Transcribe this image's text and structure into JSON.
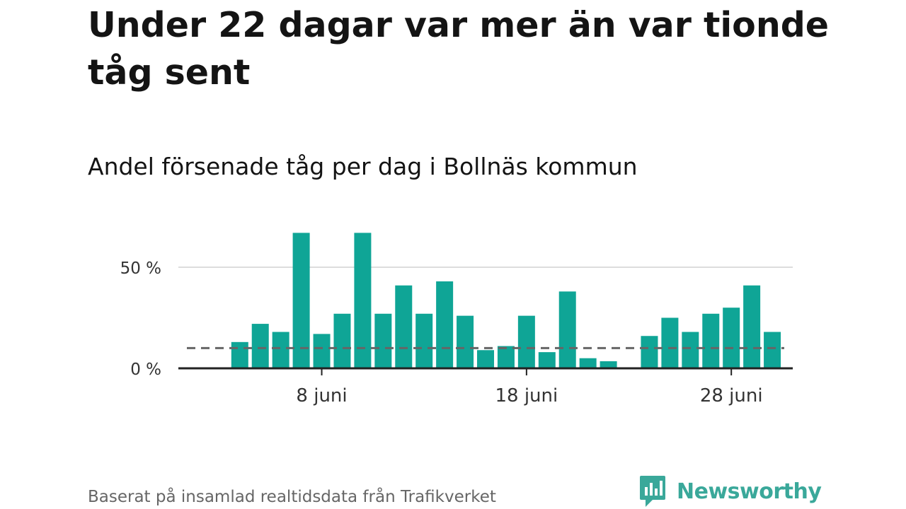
{
  "header": {
    "title": "Under 22 dagar var mer än var tionde tåg sent",
    "subtitle": "Andel försenade tåg per dag i Bollnäs kommun"
  },
  "footer": {
    "source": "Baserat på insamlad realtidsdata från Trafikverket",
    "brand": "Newsworthy",
    "brand_icon": "newsworthy-logo-icon"
  },
  "colors": {
    "bar": "#0fa596",
    "reference_line": "#666666",
    "axis": "#222222",
    "grid": "#dddddd",
    "brand": "#3aa89a"
  },
  "chart_data": {
    "type": "bar",
    "x_unit": "juni",
    "x": [
      4,
      5,
      6,
      7,
      8,
      9,
      10,
      11,
      12,
      13,
      14,
      15,
      16,
      17,
      18,
      19,
      20,
      21,
      22,
      23,
      24,
      25,
      26,
      27,
      28,
      29,
      30
    ],
    "values": [
      13,
      22,
      18,
      67,
      17,
      27,
      67,
      27,
      41,
      27,
      43,
      26,
      9,
      11,
      26,
      8,
      38,
      5,
      3.5,
      null,
      16,
      25,
      18,
      27,
      30,
      41,
      18
    ],
    "xlim": [
      1,
      31
    ],
    "ylim": [
      0,
      70
    ],
    "x_ticks": [
      {
        "value": 8,
        "label": "8 juni"
      },
      {
        "value": 18,
        "label": "18 juni"
      },
      {
        "value": 28,
        "label": "28 juni"
      }
    ],
    "y_ticks": [
      {
        "value": 0,
        "label": "0 %"
      },
      {
        "value": 50,
        "label": "50 %"
      }
    ],
    "reference_line": {
      "value": 10,
      "style": "dashed",
      "x_range": [
        1,
        31
      ]
    },
    "grid": true,
    "xlabel": "",
    "ylabel": ""
  }
}
